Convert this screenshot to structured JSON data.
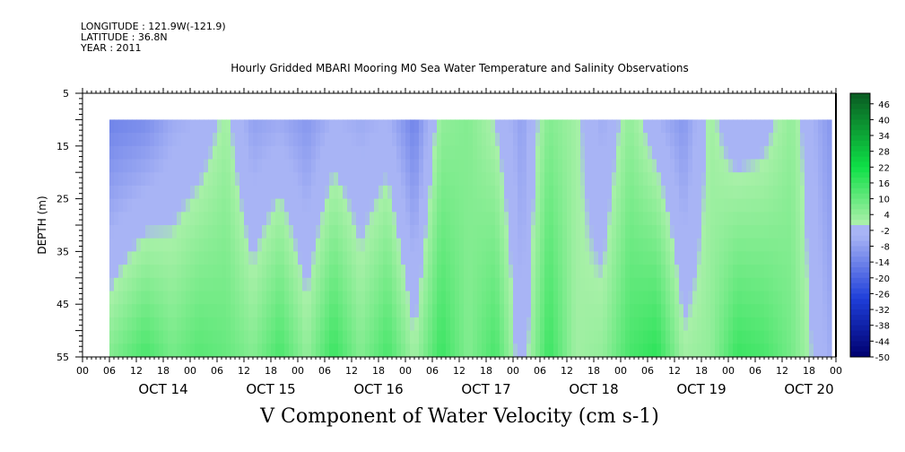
{
  "header": {
    "longitude": "LONGITUDE : 121.9W(-121.9)",
    "latitude": "LATITUDE : 36.8N",
    "year": "YEAR : 2011"
  },
  "chart_data": {
    "type": "heatmap",
    "title": "Hourly Gridded MBARI Mooring M0 Sea Water Temperature and Salinity Observations",
    "bottom_title": "V Component of Water Velocity (cm s-1)",
    "ylabel": "DEPTH (m)",
    "xlabel": "",
    "ylim": [
      5,
      55
    ],
    "y_inverted": true,
    "y_ticks": [
      5,
      15,
      25,
      35,
      45,
      55
    ],
    "x_range_hours": [
      -6,
      162
    ],
    "x_hour_labels": [
      "00",
      "06",
      "12",
      "18",
      "00",
      "06",
      "12",
      "18",
      "00",
      "06",
      "12",
      "18",
      "00",
      "06",
      "12",
      "18",
      "00",
      "06",
      "12",
      "18",
      "00",
      "06",
      "12",
      "18",
      "00",
      "06",
      "12",
      "18",
      "00",
      "06",
      "12",
      "18"
    ],
    "x_day_labels": [
      "OCT 14",
      "OCT 15",
      "OCT 16",
      "OCT 17",
      "OCT 18",
      "OCT 19",
      "OCT 20"
    ],
    "data_depth_range": [
      10,
      55
    ],
    "data_time_range_hours": [
      0,
      161
    ],
    "colorbar": {
      "labels": [
        "46",
        "40",
        "34",
        "28",
        "22",
        "16",
        "10",
        "4",
        "-2",
        "-8",
        "-14",
        "-20",
        "-26",
        "-32",
        "-38",
        "-44",
        "-50"
      ],
      "range": [
        -50,
        50
      ],
      "colors": {
        "neg_strong": "#00006e",
        "neg_mid": "#1e3ed9",
        "neg_light": "#a8b4f5",
        "pos_light": "#a8f0a8",
        "pos_mid": "#0ee046",
        "pos_strong": "#0a5a22"
      }
    },
    "v_by_day_sequence": [
      {
        "hour": 0,
        "surface": -14,
        "bottom": 6
      },
      {
        "hour": 8,
        "surface": -12,
        "bottom": 14
      },
      {
        "hour": 14,
        "surface": -6,
        "bottom": 8
      },
      {
        "hour": 20,
        "surface": -4,
        "bottom": 12
      },
      {
        "hour": 26,
        "surface": 2,
        "bottom": 10
      },
      {
        "hour": 32,
        "surface": -8,
        "bottom": 6
      },
      {
        "hour": 38,
        "surface": -6,
        "bottom": 14
      },
      {
        "hour": 44,
        "surface": -10,
        "bottom": 4
      },
      {
        "hour": 50,
        "surface": -4,
        "bottom": 16
      },
      {
        "hour": 56,
        "surface": -6,
        "bottom": 6
      },
      {
        "hour": 62,
        "surface": -4,
        "bottom": 14
      },
      {
        "hour": 68,
        "surface": -14,
        "bottom": 2
      },
      {
        "hour": 74,
        "surface": 4,
        "bottom": 16
      },
      {
        "hour": 80,
        "surface": 6,
        "bottom": 6
      },
      {
        "hour": 86,
        "surface": 0,
        "bottom": 14
      },
      {
        "hour": 92,
        "surface": -8,
        "bottom": -4
      },
      {
        "hour": 98,
        "surface": 6,
        "bottom": 16
      },
      {
        "hour": 104,
        "surface": 2,
        "bottom": 2
      },
      {
        "hour": 110,
        "surface": -6,
        "bottom": 4
      },
      {
        "hour": 116,
        "surface": 4,
        "bottom": 14
      },
      {
        "hour": 122,
        "surface": -4,
        "bottom": 18
      },
      {
        "hour": 128,
        "surface": -10,
        "bottom": 2
      },
      {
        "hour": 134,
        "surface": 2,
        "bottom": 4
      },
      {
        "hour": 140,
        "surface": -4,
        "bottom": 16
      },
      {
        "hour": 146,
        "surface": -2,
        "bottom": 14
      },
      {
        "hour": 152,
        "surface": 4,
        "bottom": 8
      },
      {
        "hour": 158,
        "surface": -6,
        "bottom": -2
      },
      {
        "hour": 161,
        "surface": -10,
        "bottom": -6
      }
    ]
  }
}
